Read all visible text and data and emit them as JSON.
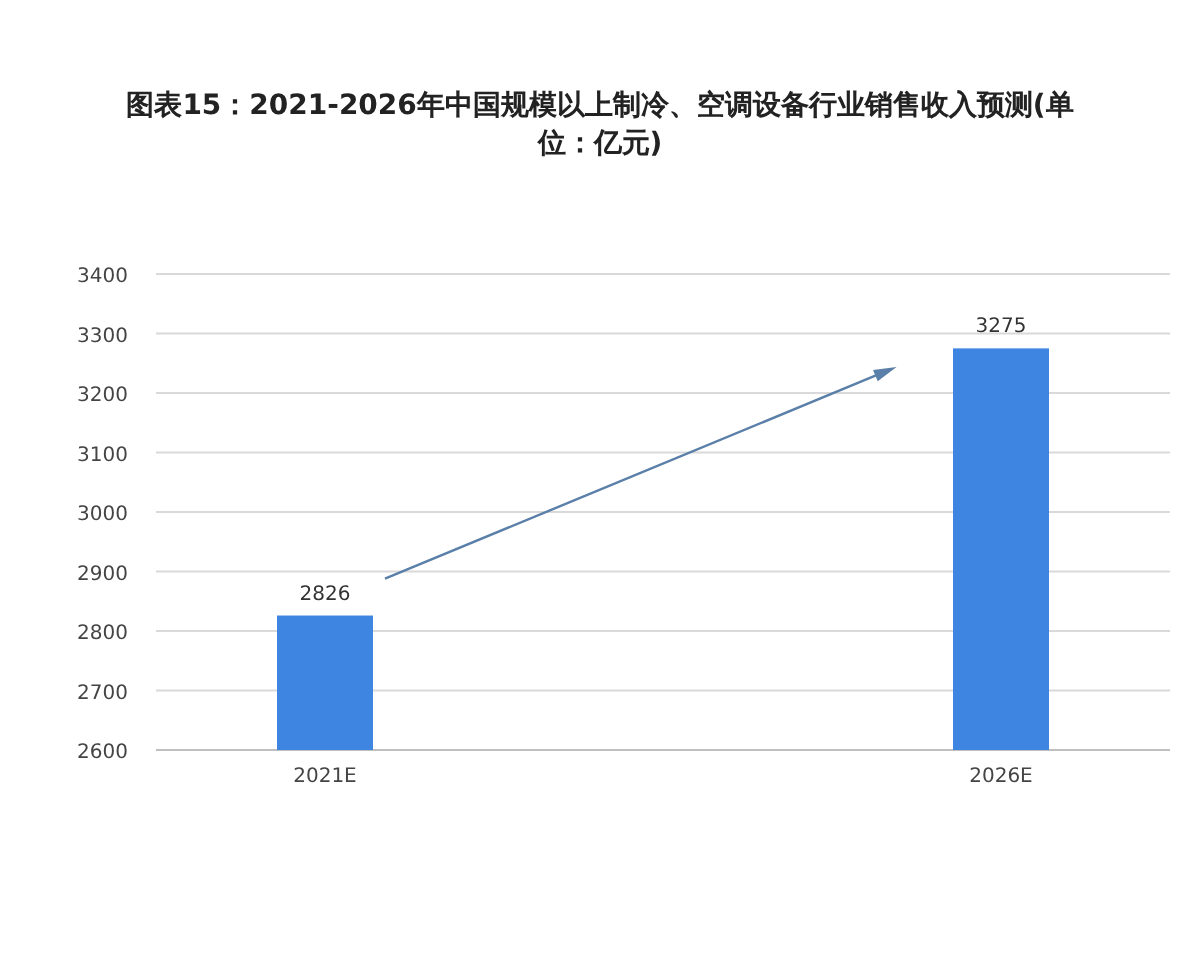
{
  "chart_data": {
    "type": "bar",
    "title": "图表15：2021-2026年中国规模以上制冷、空调设备行业销售收入预测(单位：亿元)",
    "categories": [
      "2021E",
      "2026E"
    ],
    "values": [
      2826,
      3275
    ],
    "color": "#3d85e0",
    "ylim": [
      2600,
      3400
    ],
    "yticks": [
      2600,
      2700,
      2800,
      2900,
      3000,
      3100,
      3200,
      3300,
      3400
    ],
    "grid": "y",
    "data_labels": true
  }
}
